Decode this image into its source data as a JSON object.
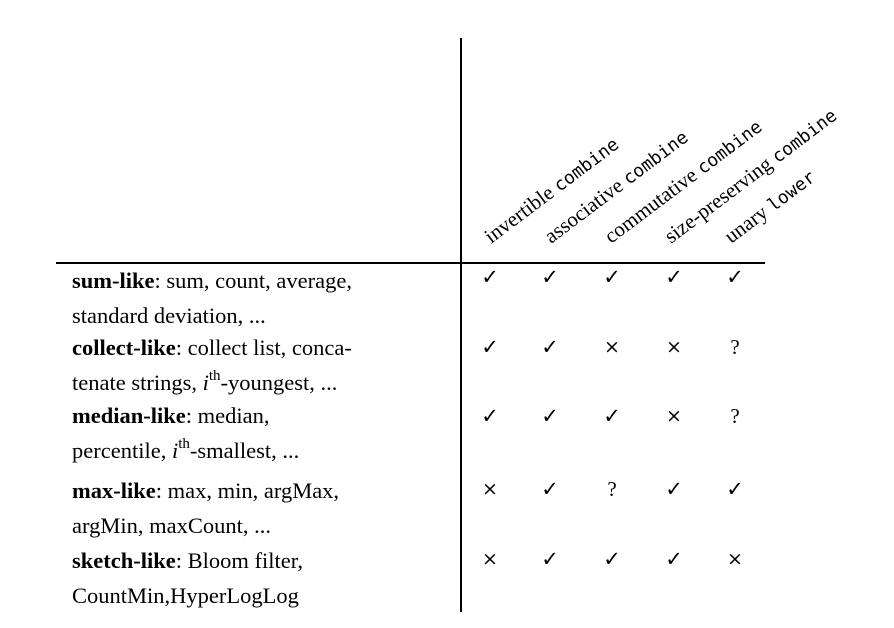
{
  "columns": [
    {
      "pre": "invertible ",
      "code": "combine"
    },
    {
      "pre": "associative ",
      "code": "combine"
    },
    {
      "pre": "commutative ",
      "code": "combine"
    },
    {
      "pre": "size-preserving ",
      "code": "combine"
    },
    {
      "pre": "unary ",
      "code": "lower"
    }
  ],
  "rows": [
    {
      "name": "sum-like",
      "line1": ": sum, count, average,",
      "line2_pre": "standard deviation, ...",
      "cells": [
        "✓",
        "✓",
        "✓",
        "✓",
        "✓"
      ]
    },
    {
      "name": "collect-like",
      "line1": ": collect list, conca-",
      "line2_pre": "tenate strings, ",
      "line2_sup": "th",
      "line2_post": "-youngest, ...",
      "cells": [
        "✓",
        "✓",
        "×",
        "×",
        "?"
      ]
    },
    {
      "name": "median-like",
      "line1": ": median,",
      "line2_pre": "percentile, ",
      "line2_sup": "th",
      "line2_post": "-smallest, ...",
      "cells": [
        "✓",
        "✓",
        "✓",
        "×",
        "?"
      ]
    },
    {
      "name": "max-like",
      "line1": ": max, min, argMax,",
      "line2_pre": "argMin, maxCount, ...",
      "cells": [
        "×",
        "✓",
        "?",
        "✓",
        "✓"
      ]
    },
    {
      "name": "sketch-like",
      "line1": ": Bloom filter,",
      "line2_pre": "CountMin,HyperLogLog",
      "cells": [
        "×",
        "✓",
        "✓",
        "✓",
        "×"
      ]
    }
  ],
  "italic_var": "i"
}
